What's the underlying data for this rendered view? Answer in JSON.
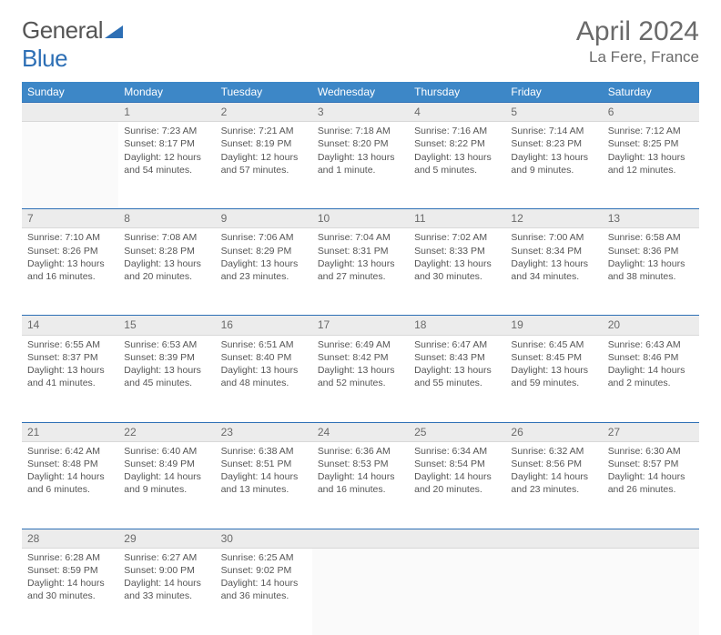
{
  "brand": {
    "part1": "General",
    "part2": "Blue"
  },
  "title": "April 2024",
  "location": "La Fere, France",
  "colors": {
    "header_bg": "#3d87c7",
    "header_text": "#ffffff",
    "daynum_bg": "#ececec",
    "daynum_border_top": "#2d6fb5",
    "text": "#555555",
    "title_text": "#6a6a6a"
  },
  "weekdays": [
    "Sunday",
    "Monday",
    "Tuesday",
    "Wednesday",
    "Thursday",
    "Friday",
    "Saturday"
  ],
  "weeks": [
    [
      null,
      {
        "d": "1",
        "sr": "7:23 AM",
        "ss": "8:17 PM",
        "dl": "12 hours and 54 minutes."
      },
      {
        "d": "2",
        "sr": "7:21 AM",
        "ss": "8:19 PM",
        "dl": "12 hours and 57 minutes."
      },
      {
        "d": "3",
        "sr": "7:18 AM",
        "ss": "8:20 PM",
        "dl": "13 hours and 1 minute."
      },
      {
        "d": "4",
        "sr": "7:16 AM",
        "ss": "8:22 PM",
        "dl": "13 hours and 5 minutes."
      },
      {
        "d": "5",
        "sr": "7:14 AM",
        "ss": "8:23 PM",
        "dl": "13 hours and 9 minutes."
      },
      {
        "d": "6",
        "sr": "7:12 AM",
        "ss": "8:25 PM",
        "dl": "13 hours and 12 minutes."
      }
    ],
    [
      {
        "d": "7",
        "sr": "7:10 AM",
        "ss": "8:26 PM",
        "dl": "13 hours and 16 minutes."
      },
      {
        "d": "8",
        "sr": "7:08 AM",
        "ss": "8:28 PM",
        "dl": "13 hours and 20 minutes."
      },
      {
        "d": "9",
        "sr": "7:06 AM",
        "ss": "8:29 PM",
        "dl": "13 hours and 23 minutes."
      },
      {
        "d": "10",
        "sr": "7:04 AM",
        "ss": "8:31 PM",
        "dl": "13 hours and 27 minutes."
      },
      {
        "d": "11",
        "sr": "7:02 AM",
        "ss": "8:33 PM",
        "dl": "13 hours and 30 minutes."
      },
      {
        "d": "12",
        "sr": "7:00 AM",
        "ss": "8:34 PM",
        "dl": "13 hours and 34 minutes."
      },
      {
        "d": "13",
        "sr": "6:58 AM",
        "ss": "8:36 PM",
        "dl": "13 hours and 38 minutes."
      }
    ],
    [
      {
        "d": "14",
        "sr": "6:55 AM",
        "ss": "8:37 PM",
        "dl": "13 hours and 41 minutes."
      },
      {
        "d": "15",
        "sr": "6:53 AM",
        "ss": "8:39 PM",
        "dl": "13 hours and 45 minutes."
      },
      {
        "d": "16",
        "sr": "6:51 AM",
        "ss": "8:40 PM",
        "dl": "13 hours and 48 minutes."
      },
      {
        "d": "17",
        "sr": "6:49 AM",
        "ss": "8:42 PM",
        "dl": "13 hours and 52 minutes."
      },
      {
        "d": "18",
        "sr": "6:47 AM",
        "ss": "8:43 PM",
        "dl": "13 hours and 55 minutes."
      },
      {
        "d": "19",
        "sr": "6:45 AM",
        "ss": "8:45 PM",
        "dl": "13 hours and 59 minutes."
      },
      {
        "d": "20",
        "sr": "6:43 AM",
        "ss": "8:46 PM",
        "dl": "14 hours and 2 minutes."
      }
    ],
    [
      {
        "d": "21",
        "sr": "6:42 AM",
        "ss": "8:48 PM",
        "dl": "14 hours and 6 minutes."
      },
      {
        "d": "22",
        "sr": "6:40 AM",
        "ss": "8:49 PM",
        "dl": "14 hours and 9 minutes."
      },
      {
        "d": "23",
        "sr": "6:38 AM",
        "ss": "8:51 PM",
        "dl": "14 hours and 13 minutes."
      },
      {
        "d": "24",
        "sr": "6:36 AM",
        "ss": "8:53 PM",
        "dl": "14 hours and 16 minutes."
      },
      {
        "d": "25",
        "sr": "6:34 AM",
        "ss": "8:54 PM",
        "dl": "14 hours and 20 minutes."
      },
      {
        "d": "26",
        "sr": "6:32 AM",
        "ss": "8:56 PM",
        "dl": "14 hours and 23 minutes."
      },
      {
        "d": "27",
        "sr": "6:30 AM",
        "ss": "8:57 PM",
        "dl": "14 hours and 26 minutes."
      }
    ],
    [
      {
        "d": "28",
        "sr": "6:28 AM",
        "ss": "8:59 PM",
        "dl": "14 hours and 30 minutes."
      },
      {
        "d": "29",
        "sr": "6:27 AM",
        "ss": "9:00 PM",
        "dl": "14 hours and 33 minutes."
      },
      {
        "d": "30",
        "sr": "6:25 AM",
        "ss": "9:02 PM",
        "dl": "14 hours and 36 minutes."
      },
      null,
      null,
      null,
      null
    ]
  ],
  "labels": {
    "sunrise": "Sunrise: ",
    "sunset": "Sunset: ",
    "daylight": "Daylight: "
  }
}
